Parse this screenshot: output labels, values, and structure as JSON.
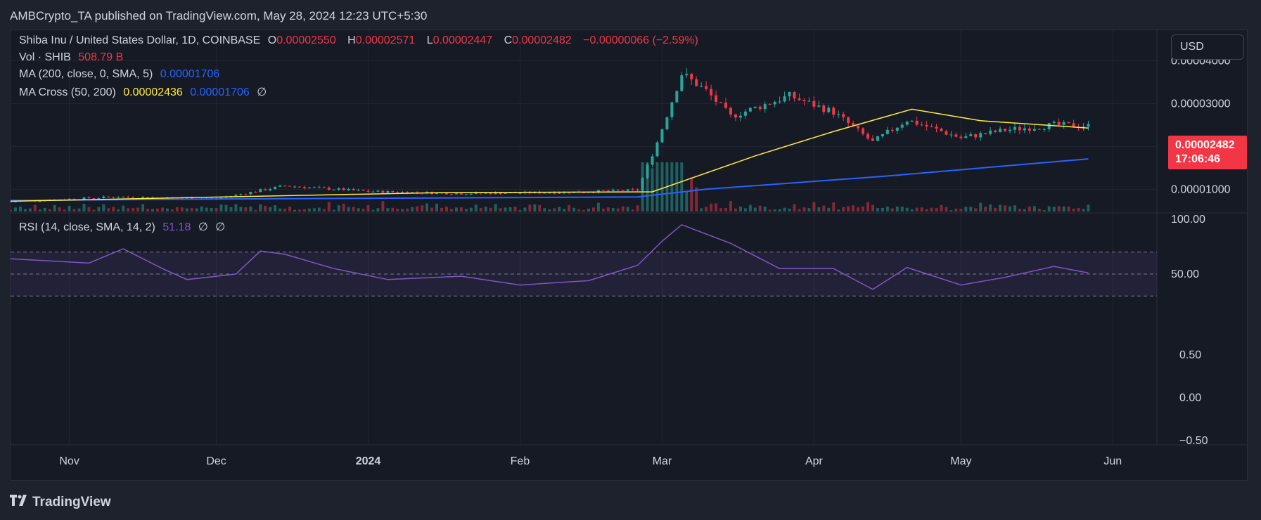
{
  "header": {
    "publisher_line": "AMBCrypto_TA published on TradingView.com, May 28, 2024 12:23 UTC+5:30"
  },
  "legend": {
    "symbol": "Shiba Inu / United States Dollar, 1D, COINBASE",
    "o_label": "O",
    "o_value": "0.00002550",
    "h_label": "H",
    "h_value": "0.00002571",
    "l_label": "L",
    "l_value": "0.00002447",
    "c_label": "C",
    "c_value": "0.00002482",
    "change": "−0.00000066 (−2.59%)",
    "vol_label": "Vol · SHIB",
    "vol_value": "508.79 B",
    "ma_label": "MA (200, close, 0, SMA, 5)",
    "ma_value": "0.00001706",
    "macross_label": "MA Cross (50, 200)",
    "macross_fast": "0.00002436",
    "macross_slow": "0.00001706",
    "macross_extra": "∅",
    "rsi_label": "RSI (14, close, SMA, 14, 2)",
    "rsi_value": "51.18",
    "rsi_extra1": "∅",
    "rsi_extra2": "∅"
  },
  "currency_button": "USD",
  "last_price": {
    "price": "0.00002482",
    "countdown": "17:06:46"
  },
  "footer": {
    "brand": "TradingView",
    "logo_icon": "tradingview-logo-icon"
  },
  "colors": {
    "up": "#26a69a",
    "down": "#f23645",
    "ma50": "#ffeb3b",
    "ma200": "#2962ff",
    "rsi": "#7e57c2"
  },
  "chart_data": {
    "type": "candlestick",
    "x_labels": [
      "Nov",
      "Dec",
      "2024",
      "Feb",
      "Mar",
      "Apr",
      "May",
      "Jun"
    ],
    "price_axis_labels": [
      "0.00004000",
      "0.00003000",
      "0.00001000"
    ],
    "rsi_axis_labels": [
      "100.00",
      "50.00",
      "0.50",
      "0.00",
      "−0.50"
    ],
    "price_axis_range": [
      4.8e-06,
      4.55e-05
    ],
    "price_series_points": [
      [
        "2023-10-20",
        7.1e-06
      ],
      [
        "2023-11-10",
        8.2e-06
      ],
      [
        "2023-12-01",
        7.8e-06
      ],
      [
        "2023-12-15",
        1.08e-05
      ],
      [
        "2024-01-01",
        9.5e-06
      ],
      [
        "2024-01-20",
        9e-06
      ],
      [
        "2024-02-10",
        9.3e-06
      ],
      [
        "2024-02-25",
        9.8e-06
      ],
      [
        "2024-02-29",
        2.1e-05
      ],
      [
        "2024-03-05",
        3.7e-05
      ],
      [
        "2024-03-10",
        3.3e-05
      ],
      [
        "2024-03-15",
        2.7e-05
      ],
      [
        "2024-03-27",
        3.18e-05
      ],
      [
        "2024-04-05",
        2.8e-05
      ],
      [
        "2024-04-13",
        2.1e-05
      ],
      [
        "2024-04-20",
        2.62e-05
      ],
      [
        "2024-05-01",
        2.2e-05
      ],
      [
        "2024-05-10",
        2.38e-05
      ],
      [
        "2024-05-20",
        2.5e-05
      ],
      [
        "2024-05-27",
        2.48e-05
      ]
    ],
    "ma50_points": [
      [
        "2023-10-20",
        7.2e-06
      ],
      [
        "2023-12-15",
        8.5e-06
      ],
      [
        "2024-01-15",
        9.2e-06
      ],
      [
        "2024-02-28",
        9.4e-06
      ],
      [
        "2024-03-20",
        1.78e-05
      ],
      [
        "2024-04-05",
        2.35e-05
      ],
      [
        "2024-04-21",
        2.87e-05
      ],
      [
        "2024-05-05",
        2.6e-05
      ],
      [
        "2024-05-27",
        2.43e-05
      ]
    ],
    "ma200_points": [
      [
        "2023-10-20",
        7.4e-06
      ],
      [
        "2023-12-01",
        7.7e-06
      ],
      [
        "2024-02-25",
        8.2e-06
      ],
      [
        "2024-03-10",
        1e-05
      ],
      [
        "2024-04-15",
        1.3e-05
      ],
      [
        "2024-05-27",
        1.71e-05
      ]
    ],
    "rsi_points": [
      [
        "2023-10-20",
        64
      ],
      [
        "2023-11-05",
        60
      ],
      [
        "2023-11-12",
        73
      ],
      [
        "2023-11-20",
        55
      ],
      [
        "2023-11-25",
        45
      ],
      [
        "2023-12-05",
        50
      ],
      [
        "2023-12-10",
        71
      ],
      [
        "2023-12-15",
        68
      ],
      [
        "2023-12-25",
        55
      ],
      [
        "2024-01-05",
        45
      ],
      [
        "2024-01-20",
        48
      ],
      [
        "2024-02-01",
        40
      ],
      [
        "2024-02-15",
        44
      ],
      [
        "2024-02-25",
        58
      ],
      [
        "2024-03-01",
        80
      ],
      [
        "2024-03-05",
        95
      ],
      [
        "2024-03-15",
        78
      ],
      [
        "2024-03-25",
        55
      ],
      [
        "2024-04-05",
        55
      ],
      [
        "2024-04-13",
        36
      ],
      [
        "2024-04-20",
        56
      ],
      [
        "2024-05-01",
        40
      ],
      [
        "2024-05-10",
        47
      ],
      [
        "2024-05-20",
        57
      ],
      [
        "2024-05-27",
        51
      ]
    ],
    "rsi_upper": 70,
    "rsi_middle": 50,
    "rsi_lower": 30
  }
}
